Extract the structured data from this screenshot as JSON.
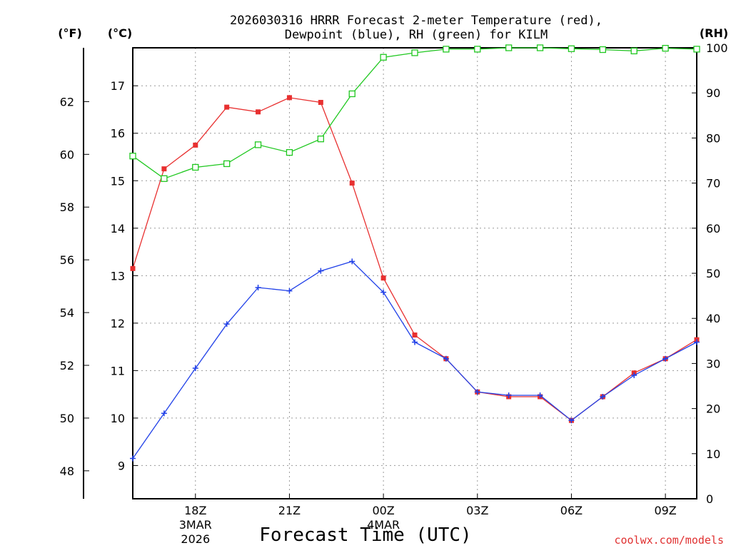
{
  "chart_data": {
    "type": "line",
    "title_line1": "2026030316 HRRR Forecast 2-meter Temperature (red),",
    "title_line2": "Dewpoint (blue), RH (green) for KILM",
    "xlabel": "Forecast Time (UTC)",
    "unit_f": "(°F)",
    "unit_c": "(°C)",
    "unit_rh": "(RH)",
    "credit": "coolwx.com/models",
    "x_hours": [
      16,
      17,
      18,
      19,
      20,
      21,
      22,
      23,
      24,
      25,
      26,
      27,
      28,
      29,
      30,
      31,
      32,
      33,
      34
    ],
    "x_ticks": [
      {
        "hour": 18,
        "label": "18Z",
        "sub1": "3MAR",
        "sub2": "2026"
      },
      {
        "hour": 21,
        "label": "21Z",
        "sub1": "",
        "sub2": ""
      },
      {
        "hour": 24,
        "label": "00Z",
        "sub1": "4MAR",
        "sub2": ""
      },
      {
        "hour": 27,
        "label": "03Z",
        "sub1": "",
        "sub2": ""
      },
      {
        "hour": 30,
        "label": "06Z",
        "sub1": "",
        "sub2": ""
      },
      {
        "hour": 33,
        "label": "09Z",
        "sub1": "",
        "sub2": ""
      }
    ],
    "xlim": [
      16,
      34
    ],
    "y_celsius": {
      "range": [
        8.3,
        17.8
      ],
      "ticks": [
        9,
        10,
        11,
        12,
        13,
        14,
        15,
        16,
        17
      ]
    },
    "y_fahrenheit": {
      "ticks": [
        48,
        50,
        52,
        54,
        56,
        58,
        60,
        62
      ]
    },
    "y_rh": {
      "range": [
        0,
        100
      ],
      "ticks": [
        0,
        10,
        20,
        30,
        40,
        50,
        60,
        70,
        80,
        90,
        100
      ]
    },
    "series": [
      {
        "name": "Temperature",
        "unit": "C",
        "color": "#e83030",
        "marker": "filled-square",
        "values": [
          13.15,
          15.25,
          15.75,
          16.55,
          16.45,
          16.75,
          16.65,
          14.95,
          12.95,
          11.75,
          11.25,
          10.55,
          10.45,
          10.45,
          9.95,
          10.45,
          10.95,
          11.25,
          11.65
        ]
      },
      {
        "name": "Dewpoint",
        "unit": "C",
        "color": "#2040e8",
        "marker": "plus",
        "values": [
          9.15,
          10.1,
          11.05,
          11.98,
          12.75,
          12.68,
          13.1,
          13.3,
          12.65,
          11.6,
          11.25,
          10.55,
          10.48,
          10.48,
          9.95,
          10.45,
          10.9,
          11.25,
          11.6
        ]
      },
      {
        "name": "RH",
        "unit": "%",
        "color": "#20c820",
        "marker": "open-square",
        "values": [
          76,
          71,
          73.5,
          74.3,
          78.5,
          76.8,
          79.8,
          89.8,
          97.9,
          98.9,
          99.7,
          99.7,
          100,
          100,
          99.8,
          99.6,
          99.3,
          99.9,
          99.7
        ]
      }
    ]
  }
}
